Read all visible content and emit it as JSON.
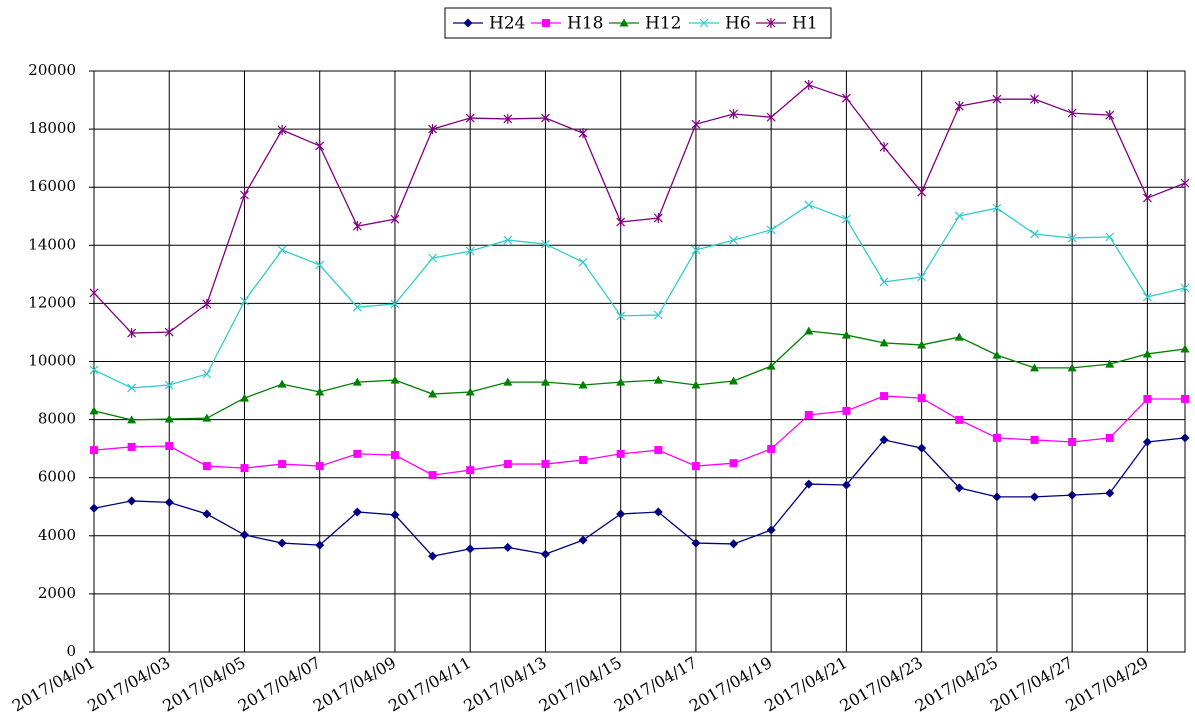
{
  "chart_data": {
    "type": "line",
    "categories": [
      "2017/04/01",
      null,
      "2017/04/03",
      null,
      "2017/04/05",
      null,
      "2017/04/07",
      null,
      "2017/04/09",
      null,
      "2017/04/11",
      null,
      "2017/04/13",
      null,
      "2017/04/15",
      null,
      "2017/04/17",
      null,
      "2017/04/19",
      null,
      "2017/04/21",
      null,
      "2017/04/23",
      null,
      "2017/04/25",
      null,
      "2017/04/27",
      null,
      "2017/04/29",
      null
    ],
    "series": [
      {
        "name": "H24",
        "color": "#000080",
        "marker": "diamond",
        "values": [
          4950,
          5200,
          5150,
          4750,
          4030,
          3750,
          3680,
          4820,
          4720,
          3300,
          3550,
          3600,
          3370,
          3850,
          4750,
          4820,
          3750,
          3720,
          4200,
          5780,
          5750,
          7300,
          7020,
          5650,
          5340,
          5340,
          5400,
          5470,
          7230,
          7370
        ]
      },
      {
        "name": "H18",
        "color": "#ff00ff",
        "marker": "square",
        "values": [
          6950,
          7060,
          7090,
          6400,
          6330,
          6470,
          6400,
          6820,
          6780,
          6090,
          6260,
          6470,
          6470,
          6610,
          6820,
          6950,
          6400,
          6500,
          6990,
          8160,
          8300,
          8810,
          8740,
          7990,
          7370,
          7300,
          7230,
          7370,
          8710,
          8710
        ]
      },
      {
        "name": "H12",
        "color": "#008000",
        "marker": "triangle",
        "values": [
          8300,
          7990,
          8020,
          8050,
          8740,
          9220,
          8950,
          9290,
          9360,
          8880,
          8950,
          9290,
          9290,
          9190,
          9290,
          9360,
          9190,
          9330,
          9840,
          11050,
          10910,
          10640,
          10570,
          10840,
          10220,
          9780,
          9780,
          9910,
          10260,
          10430
        ]
      },
      {
        "name": "H6",
        "color": "#33cccc",
        "marker": "x",
        "values": [
          9710,
          9090,
          9190,
          9570,
          12080,
          13840,
          13320,
          11870,
          11980,
          13560,
          13800,
          14180,
          14040,
          13420,
          11570,
          11600,
          13840,
          14180,
          14530,
          15390,
          14900,
          12740,
          12910,
          15010,
          15280,
          14390,
          14250,
          14290,
          12220,
          12530
        ]
      },
      {
        "name": "H1",
        "color": "#800080",
        "marker": "star",
        "values": [
          12360,
          10980,
          11010,
          11980,
          15730,
          17970,
          17420,
          14660,
          14900,
          18000,
          18380,
          18350,
          18380,
          17860,
          14800,
          14940,
          18170,
          18520,
          18410,
          19520,
          19070,
          17380,
          15830,
          18790,
          19030,
          19030,
          18550,
          18480,
          15630,
          16140
        ]
      }
    ],
    "ylim": [
      0,
      20000
    ],
    "yticks": [
      0,
      2000,
      4000,
      6000,
      8000,
      10000,
      12000,
      14000,
      16000,
      18000,
      20000
    ],
    "grid": true,
    "legend": "top"
  }
}
